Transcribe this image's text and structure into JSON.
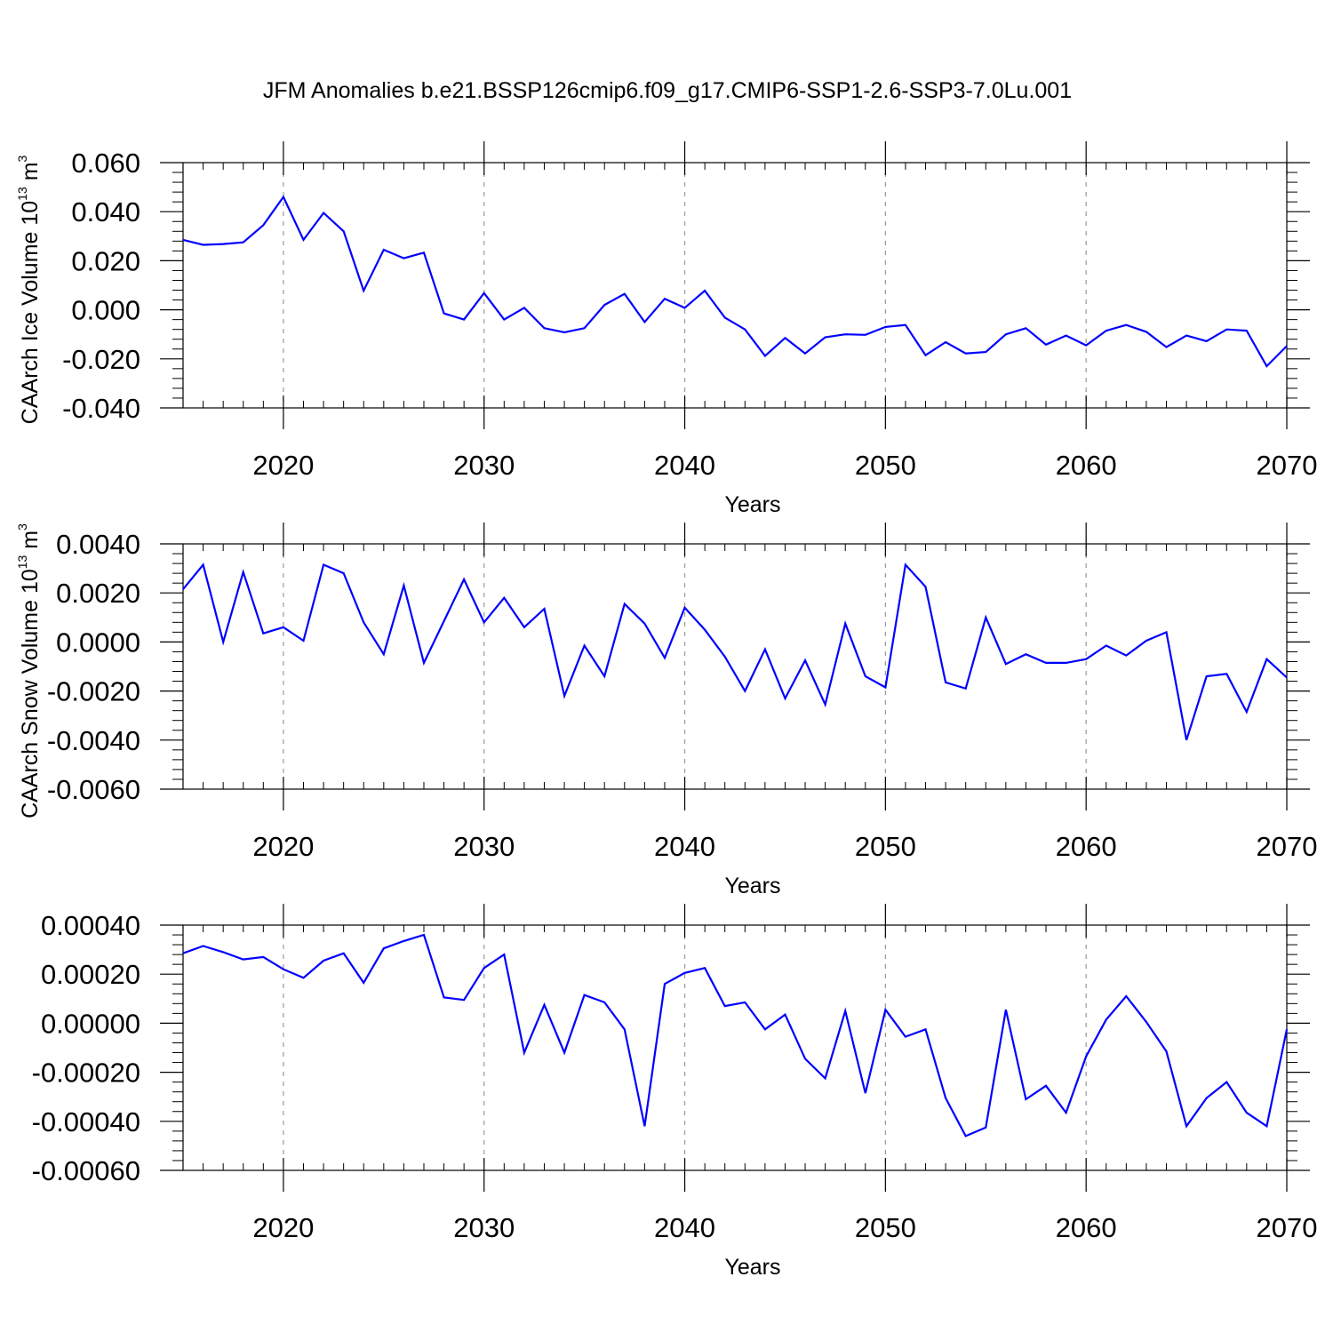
{
  "title": "JFM Anomalies b.e21.BSSP126cmip6.f09_g17.CMIP6-SSP1-2.6-SSP3-7.0Lu.001",
  "colors": {
    "line": "#0000ff",
    "axis": "#000000",
    "grid": "#999999"
  },
  "chart_data": [
    {
      "type": "line",
      "ylabel": "CAArch Ice Volume 10",
      "ylabel_exponent": "13",
      "ylabel_unit": " m",
      "ylabel_unit_exponent": "3",
      "xlabel": "Years",
      "xlim": [
        2015,
        2070
      ],
      "ylim": [
        -0.04,
        0.06
      ],
      "xticks": [
        2020,
        2030,
        2040,
        2050,
        2060,
        2070
      ],
      "xtick_labels": [
        "2020",
        "2030",
        "2040",
        "2050",
        "2060",
        "2070"
      ],
      "yticks": [
        -0.04,
        -0.02,
        0.0,
        0.02,
        0.04,
        0.06
      ],
      "ytick_labels": [
        "-0.040",
        "-0.020",
        "0.000",
        "0.020",
        "0.040",
        "0.060"
      ],
      "grid": "vertical dashed at major x ticks",
      "x": [
        2015,
        2016,
        2017,
        2018,
        2019,
        2020,
        2021,
        2022,
        2023,
        2024,
        2025,
        2026,
        2027,
        2028,
        2029,
        2030,
        2031,
        2032,
        2033,
        2034,
        2035,
        2036,
        2037,
        2038,
        2039,
        2040,
        2041,
        2042,
        2043,
        2044,
        2045,
        2046,
        2047,
        2048,
        2049,
        2050,
        2051,
        2052,
        2053,
        2054,
        2055,
        2056,
        2057,
        2058,
        2059,
        2060,
        2061,
        2062,
        2063,
        2064,
        2065,
        2066,
        2067,
        2068,
        2069,
        2070
      ],
      "y": [
        0.0285,
        0.0265,
        0.0268,
        0.0275,
        0.0345,
        0.046,
        0.0285,
        0.0395,
        0.032,
        0.0078,
        0.0245,
        0.021,
        0.0233,
        -0.0015,
        -0.004,
        0.0068,
        -0.004,
        0.0008,
        -0.0075,
        -0.0092,
        -0.0075,
        0.002,
        0.0065,
        -0.005,
        0.0045,
        0.0008,
        0.0078,
        -0.0032,
        -0.008,
        -0.0188,
        -0.0115,
        -0.0178,
        -0.0112,
        -0.01,
        -0.0102,
        -0.007,
        -0.0062,
        -0.0185,
        -0.0132,
        -0.0178,
        -0.0172,
        -0.01,
        -0.0075,
        -0.0142,
        -0.0105,
        -0.0145,
        -0.0085,
        -0.0062,
        -0.009,
        -0.0152,
        -0.0105,
        -0.0128,
        -0.008,
        -0.0085,
        -0.023,
        -0.0148
      ]
    },
    {
      "type": "line",
      "ylabel": "CAArch Snow Volume 10",
      "ylabel_exponent": "13",
      "ylabel_unit": " m",
      "ylabel_unit_exponent": "3",
      "xlabel": "Years",
      "xlim": [
        2015,
        2070
      ],
      "ylim": [
        -0.006,
        0.004
      ],
      "xticks": [
        2020,
        2030,
        2040,
        2050,
        2060,
        2070
      ],
      "xtick_labels": [
        "2020",
        "2030",
        "2040",
        "2050",
        "2060",
        "2070"
      ],
      "yticks": [
        -0.006,
        -0.004,
        -0.002,
        0.0,
        0.002,
        0.004
      ],
      "ytick_labels": [
        "-0.0060",
        "-0.0040",
        "-0.0020",
        "0.0000",
        "0.0020",
        "0.0040"
      ],
      "grid": "vertical dashed at major x ticks",
      "x": [
        2015,
        2016,
        2017,
        2018,
        2019,
        2020,
        2021,
        2022,
        2023,
        2024,
        2025,
        2026,
        2027,
        2028,
        2029,
        2030,
        2031,
        2032,
        2033,
        2034,
        2035,
        2036,
        2037,
        2038,
        2039,
        2040,
        2041,
        2042,
        2043,
        2044,
        2045,
        2046,
        2047,
        2048,
        2049,
        2050,
        2051,
        2052,
        2053,
        2054,
        2055,
        2056,
        2057,
        2058,
        2059,
        2060,
        2061,
        2062,
        2063,
        2064,
        2065,
        2066,
        2067,
        2068,
        2069,
        2070
      ],
      "y": [
        0.00215,
        0.00315,
        0.0,
        0.00285,
        0.00035,
        0.0006,
        5e-05,
        0.00315,
        0.0028,
        0.0008,
        -0.0005,
        0.0023,
        -0.00085,
        0.00085,
        0.00255,
        0.0008,
        0.0018,
        0.0006,
        0.00135,
        -0.0022,
        -0.00015,
        -0.0014,
        0.00155,
        0.00075,
        -0.00065,
        0.0014,
        0.0005,
        -0.0006,
        -0.002,
        -0.0003,
        -0.0023,
        -0.00075,
        -0.00255,
        0.00075,
        -0.0014,
        -0.00185,
        0.00315,
        0.00225,
        -0.00165,
        -0.0019,
        0.001,
        -0.0009,
        -0.0005,
        -0.00085,
        -0.00085,
        -0.0007,
        -0.00015,
        -0.00055,
        5e-05,
        0.0004,
        -0.004,
        -0.0014,
        -0.0013,
        -0.00285,
        -0.0007,
        -0.00145
      ]
    },
    {
      "type": "line",
      "xlabel": "Years",
      "xlim": [
        2015,
        2070
      ],
      "ylim": [
        -0.0006,
        0.0004
      ],
      "xticks": [
        2020,
        2030,
        2040,
        2050,
        2060,
        2070
      ],
      "xtick_labels": [
        "2020",
        "2030",
        "2040",
        "2050",
        "2060",
        "2070"
      ],
      "yticks": [
        -0.0006,
        -0.0004,
        -0.0002,
        0.0,
        0.0002,
        0.0004
      ],
      "ytick_labels": [
        "-0.00060",
        "-0.00040",
        "-0.00020",
        "0.00000",
        "0.00020",
        "0.00040"
      ],
      "grid": "vertical dashed at major x ticks",
      "x": [
        2015,
        2016,
        2017,
        2018,
        2019,
        2020,
        2021,
        2022,
        2023,
        2024,
        2025,
        2026,
        2027,
        2028,
        2029,
        2030,
        2031,
        2032,
        2033,
        2034,
        2035,
        2036,
        2037,
        2038,
        2039,
        2040,
        2041,
        2042,
        2043,
        2044,
        2045,
        2046,
        2047,
        2048,
        2049,
        2050,
        2051,
        2052,
        2053,
        2054,
        2055,
        2056,
        2057,
        2058,
        2059,
        2060,
        2061,
        2062,
        2063,
        2064,
        2065,
        2066,
        2067,
        2068,
        2069,
        2070
      ],
      "y": [
        0.000285,
        0.000315,
        0.00029,
        0.00026,
        0.00027,
        0.00022,
        0.000185,
        0.000255,
        0.000285,
        0.000165,
        0.000305,
        0.000335,
        0.00036,
        0.000105,
        9.5e-05,
        0.000225,
        0.00028,
        -0.00012,
        7.5e-05,
        -0.00012,
        0.000115,
        8.5e-05,
        -2.5e-05,
        -0.00042,
        0.00016,
        0.000205,
        0.000225,
        7e-05,
        8.5e-05,
        -2.5e-05,
        3.5e-05,
        -0.000145,
        -0.000225,
        5e-05,
        -0.000285,
        5.5e-05,
        -5.5e-05,
        -2.5e-05,
        -0.000305,
        -0.00046,
        -0.000425,
        5.5e-05,
        -0.00031,
        -0.000255,
        -0.000365,
        -0.000135,
        1.5e-05,
        0.00011,
        5e-06,
        -0.000115,
        -0.00042,
        -0.000305,
        -0.00024,
        -0.000365,
        -0.00042,
        -2.5e-05
      ]
    }
  ]
}
